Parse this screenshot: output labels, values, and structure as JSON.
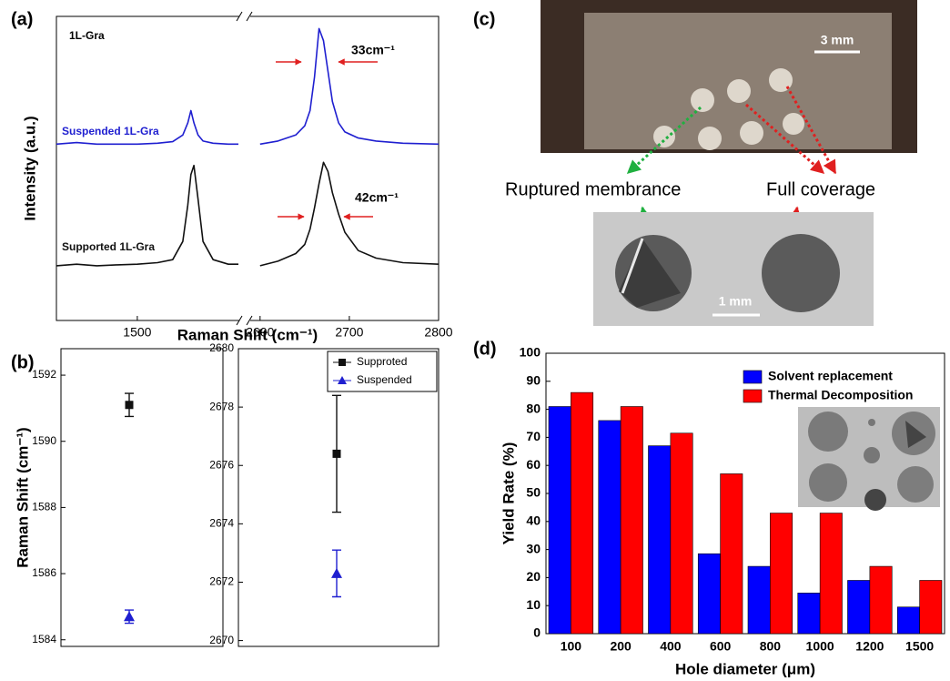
{
  "chart_data": [
    {
      "type": "line",
      "panel_label": "(a)",
      "annotations": [
        "1L-Gra",
        "33cm⁻¹",
        "42cm⁻¹"
      ],
      "x_label": "Raman Shift (cm⁻¹)",
      "y_label": "Intensity (a.u.)",
      "ylim": [
        0,
        100
      ],
      "x_segments": [
        {
          "xlim": [
            1420,
            1600
          ],
          "xticks": [
            1500
          ],
          "x": [
            1420,
            1440,
            1460,
            1480,
            1500,
            1520,
            1535,
            1545,
            1550,
            1553,
            1556,
            1560,
            1565,
            1575,
            1590,
            1600
          ]
        },
        {
          "xlim": [
            2590,
            2800
          ],
          "xticks": [
            2600,
            2700,
            2800
          ],
          "x": [
            2600,
            2620,
            2640,
            2650,
            2656,
            2661,
            2666,
            2671,
            2676,
            2681,
            2688,
            2695,
            2710,
            2730,
            2760,
            2800
          ]
        }
      ],
      "series": [
        {
          "name": "Suspended 1L-Gra",
          "color": "#1f1fd0",
          "values": [
            [
              58,
              58.5,
              58,
              58,
              58,
              58.3,
              58.8,
              61,
              65,
              69,
              65,
              61,
              59,
              58.3,
              58,
              58
            ],
            [
              58,
              59,
              61,
              64,
              69,
              80,
              96,
              92,
              82,
              72,
              65,
              62,
              60,
              59,
              58.3,
              58
            ]
          ]
        },
        {
          "name": "Supported 1L-Gra",
          "color": "#111111",
          "values": [
            [
              18,
              18.5,
              18,
              18.3,
              18.5,
              19,
              20,
              26,
              38,
              48,
              51,
              40,
              26,
              20,
              18.5,
              18.5
            ],
            [
              18,
              19.5,
              22,
              25,
              30,
              37,
              45,
              52,
              49,
              42,
              35,
              29,
              23,
              20.5,
              19,
              18.5
            ]
          ]
        }
      ]
    },
    {
      "type": "errorbar",
      "panel_label": "(b)",
      "y_label": "Raman Shift (cm⁻¹)",
      "series": [
        {
          "name": "Supproted",
          "color": "#111111",
          "marker": "square"
        },
        {
          "name": "Suspended",
          "color": "#1f1fd0",
          "marker": "triangle"
        }
      ],
      "panels": [
        {
          "ylim": [
            1583.8,
            1592.8
          ],
          "yticks": [
            1584,
            1586,
            1588,
            1590,
            1592
          ],
          "values": [
            1591.1,
            1584.7
          ],
          "errors": [
            0.35,
            0.2
          ]
        },
        {
          "ylim": [
            2669.8,
            2680
          ],
          "yticks": [
            2670,
            2672,
            2674,
            2676,
            2678,
            2680
          ],
          "values": [
            2676.4,
            2672.3
          ],
          "errors": [
            2.0,
            0.8
          ]
        }
      ]
    },
    {
      "type": "bar",
      "panel_label": "(d)",
      "x_label": "Hole diameter (μm)",
      "y_label": "Yield Rate (%)",
      "categories": [
        "100",
        "200",
        "400",
        "600",
        "800",
        "1000",
        "1200",
        "1500"
      ],
      "ylim": [
        0,
        100
      ],
      "yticks": [
        0,
        10,
        20,
        30,
        40,
        50,
        60,
        70,
        80,
        90,
        100
      ],
      "legend": "upper right",
      "series": [
        {
          "name": "Solvent replacement",
          "color": "#0000ff",
          "values": [
            81,
            76,
            67,
            28.5,
            24,
            14.5,
            19,
            9.5
          ]
        },
        {
          "name": "Thermal Decomposition",
          "color": "#ff0000",
          "values": [
            86,
            81,
            71.5,
            57,
            43,
            43,
            24,
            19
          ]
        }
      ]
    }
  ],
  "photo_panel": {
    "panel_label": "(c)",
    "scale_top": "3 mm",
    "labels": [
      "Ruptured membrance",
      "Full coverage"
    ],
    "scale_bottom": "1 mm"
  }
}
